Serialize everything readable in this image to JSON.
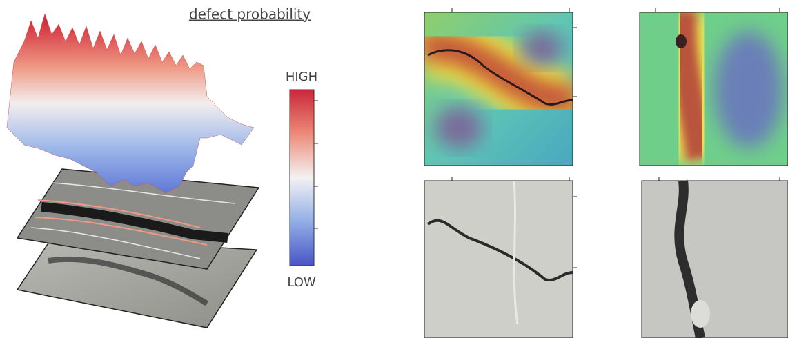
{
  "title": "defect probability",
  "colorbar": {
    "high": "HIGH",
    "low": "LOW"
  }
}
